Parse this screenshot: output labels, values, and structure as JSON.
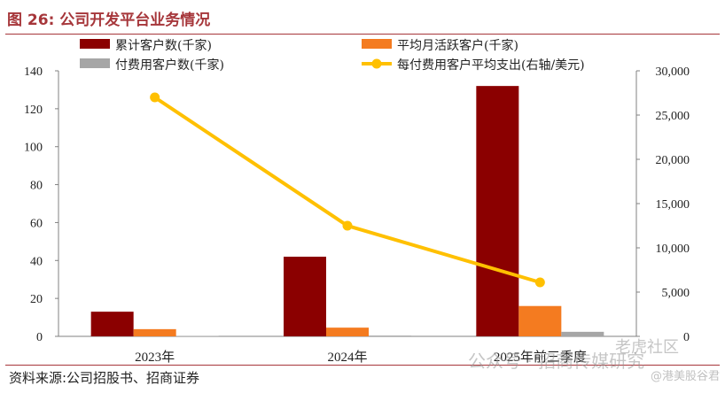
{
  "header": {
    "title": "图 26:  公司开发平台业务情况"
  },
  "footer": {
    "source": "资料来源:公司招股书、招商证券"
  },
  "watermark": {
    "wechat": "公众号 · 招商传媒研究",
    "tiger": "老虎社区",
    "author": "@港美股谷君"
  },
  "colors": {
    "bar1": "#8b0000",
    "bar2": "#f47b20",
    "bar3": "#a6a6a6",
    "line": "#ffc000",
    "accent": "#a6363a"
  },
  "chart_data": {
    "type": "bar",
    "categories": [
      "2023年",
      "2024年",
      "2025年前三季度"
    ],
    "series": [
      {
        "name": "累计客户数(千家)",
        "values": [
          13,
          42,
          132
        ],
        "axis": "left",
        "kind": "bar"
      },
      {
        "name": "平均月活跃客户(千家)",
        "values": [
          3.8,
          4.6,
          16
        ],
        "axis": "left",
        "kind": "bar"
      },
      {
        "name": "付费用客户数(千家)",
        "values": [
          0.2,
          0.4,
          2.4
        ],
        "axis": "left",
        "kind": "bar"
      },
      {
        "name": "每付费用客户平均支出(右轴/美元)",
        "values": [
          27000,
          12500,
          6100
        ],
        "axis": "right",
        "kind": "line"
      }
    ],
    "y_left": {
      "min": 0,
      "max": 140,
      "ticks": [
        "0",
        "20",
        "40",
        "60",
        "80",
        "100",
        "120",
        "140"
      ]
    },
    "y_right": {
      "min": 0,
      "max": 30000,
      "ticks": [
        "0",
        "5,000",
        "10,000",
        "15,000",
        "20,000",
        "25,000",
        "30,000"
      ]
    },
    "legend_position": "top",
    "grid": false
  }
}
